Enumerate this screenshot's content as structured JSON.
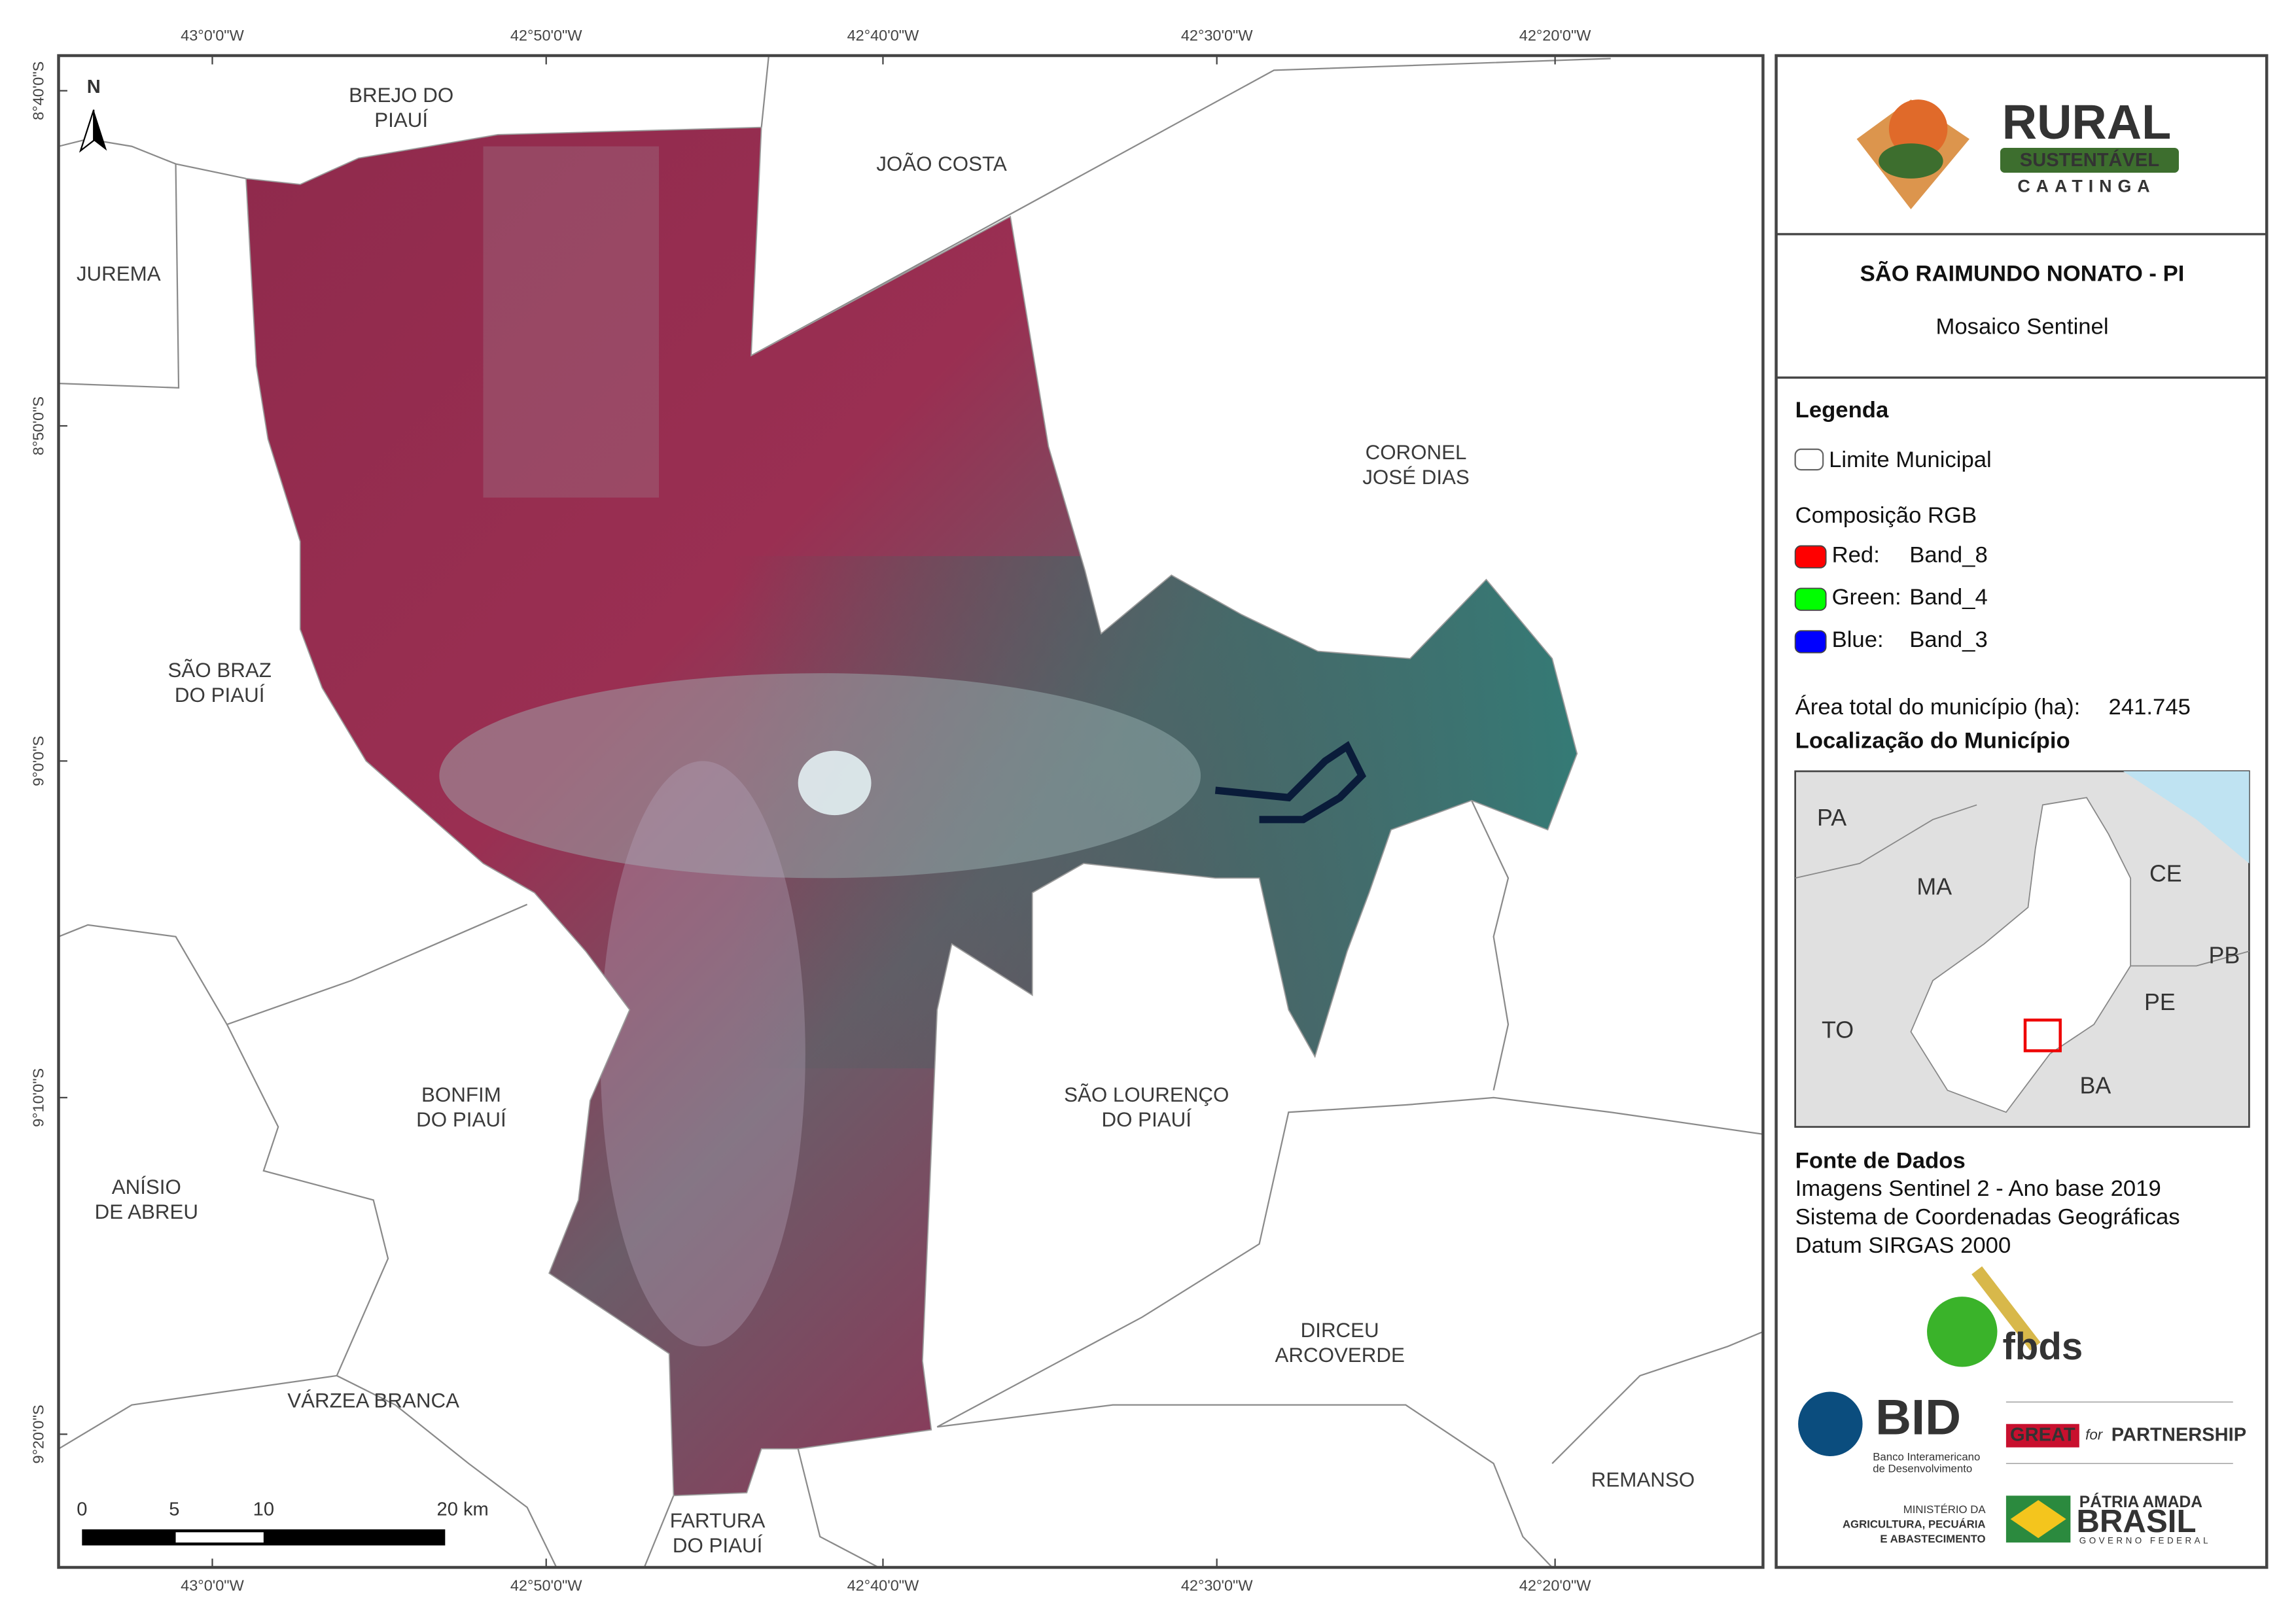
{
  "map": {
    "longitudes": [
      "43°0'0\"W",
      "42°50'0\"W",
      "42°40'0\"W",
      "42°30'0\"W",
      "42°20'0\"W"
    ],
    "latitudes": [
      "8°40'0\"S",
      "8°50'0\"S",
      "9°0'0\"S",
      "9°10'0\"S",
      "9°20'0\"S"
    ],
    "north": "N",
    "places": [
      {
        "lines": [
          "BREJO DO",
          "PIAUÍ"
        ]
      },
      {
        "lines": [
          "JOÃO COSTA"
        ]
      },
      {
        "lines": [
          "JUREMA"
        ]
      },
      {
        "lines": [
          "CORONEL",
          "JOSÉ DIAS"
        ]
      },
      {
        "lines": [
          "SÃO BRAZ",
          "DO PIAUÍ"
        ]
      },
      {
        "lines": [
          "BONFIM",
          "DO PIAUÍ"
        ]
      },
      {
        "lines": [
          "SÃO LOURENÇO",
          "DO PIAUÍ"
        ]
      },
      {
        "lines": [
          "ANÍSIO",
          "DE ABREU"
        ]
      },
      {
        "lines": [
          "DIRCEU",
          "ARCOVERDE"
        ]
      },
      {
        "lines": [
          "VÁRZEA BRANCA"
        ]
      },
      {
        "lines": [
          "REMANSO"
        ]
      },
      {
        "lines": [
          "FARTURA",
          "DO PIAUÍ"
        ]
      }
    ],
    "scale_bar": [
      "0",
      "5",
      "10",
      "20 km"
    ]
  },
  "panel": {
    "logo": {
      "word": "RURAL",
      "band": "SUSTENTÁVEL",
      "region": "CAATINGA"
    },
    "title": "SÃO RAIMUNDO NONATO - PI",
    "subtitle": "Mosaico Sentinel",
    "legend": {
      "heading": "Legenda",
      "boundary": "Limite Municipal",
      "rgb_heading": "Composição RGB",
      "bands": [
        {
          "channel": "Red:",
          "band": "Band_8",
          "color": "#ff0000"
        },
        {
          "channel": "Green:",
          "band": "Band_4",
          "color": "#00ff00"
        },
        {
          "channel": "Blue:",
          "band": "Band_3",
          "color": "#0000ff"
        }
      ],
      "area_label": "Área total do município (ha):",
      "area_value": "241.745"
    },
    "location": {
      "heading": "Localização do Município",
      "states": [
        "PA",
        "MA",
        "CE",
        "PB",
        "PE",
        "TO",
        "BA"
      ]
    },
    "sources": {
      "heading": "Fonte de Dados",
      "lines": [
        "Imagens Sentinel 2 - Ano base 2019",
        "Sistema de Coordenadas Geográficas",
        "Datum SIRGAS 2000"
      ]
    },
    "partners": {
      "fbds": "fbds",
      "bid": "BID",
      "bid_name": [
        "Banco Interamericano",
        "de Desenvolvimento"
      ],
      "great": "GREAT",
      "great_for": "for",
      "great_partnership": "PARTNERSHIP",
      "ministry": [
        "MINISTÉRIO DA",
        "AGRICULTURA, PECUÁRIA",
        "E ABASTECIMENTO"
      ],
      "brasil_top": "PÁTRIA AMADA",
      "brasil": "BRASIL",
      "brasil_bottom": "GOVERNO FEDERAL"
    }
  }
}
